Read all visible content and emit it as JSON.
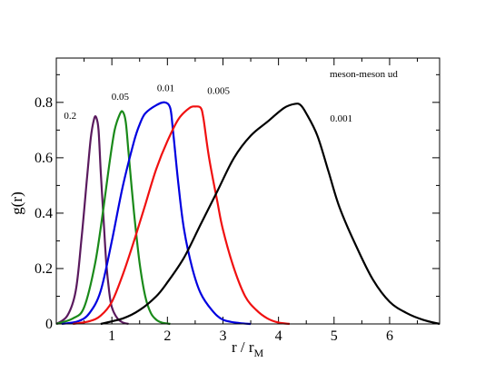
{
  "chart_data": {
    "type": "line",
    "annotation": "meson-meson ud",
    "xlabel": "r / r",
    "xlabel_sub": "M",
    "ylabel": "g(r)",
    "xlim": [
      0,
      6.9
    ],
    "ylim": [
      0,
      0.96
    ],
    "x_ticks": [
      1,
      2,
      3,
      4,
      5,
      6
    ],
    "x_tick_labels": [
      "1",
      "2",
      "3",
      "4",
      "5",
      "6"
    ],
    "y_ticks": [
      0,
      0.2,
      0.4,
      0.6,
      0.8
    ],
    "y_tick_labels": [
      "0",
      "0.2",
      "0.4",
      "0.6",
      "0.8"
    ],
    "grid": false,
    "legend": "none",
    "series": [
      {
        "name": "0.2",
        "color": "#5a1a5e",
        "label_pos": [
          0.25,
          0.74
        ],
        "x": [
          0.0,
          0.2,
          0.35,
          0.45,
          0.55,
          0.62,
          0.68,
          0.72,
          0.76,
          0.8,
          0.85,
          0.9,
          0.95,
          1.0,
          1.1,
          1.2,
          1.3
        ],
        "y": [
          0.0,
          0.03,
          0.12,
          0.3,
          0.52,
          0.67,
          0.74,
          0.745,
          0.7,
          0.55,
          0.38,
          0.22,
          0.12,
          0.06,
          0.02,
          0.005,
          0.0
        ]
      },
      {
        "name": "0.05",
        "color": "#1a8a1a",
        "label_pos": [
          1.15,
          0.81
        ],
        "x": [
          0.0,
          0.3,
          0.5,
          0.7,
          0.85,
          0.95,
          1.05,
          1.15,
          1.2,
          1.25,
          1.3,
          1.4,
          1.5,
          1.6,
          1.7,
          1.8,
          1.9,
          2.05
        ],
        "y": [
          0.0,
          0.02,
          0.06,
          0.22,
          0.42,
          0.57,
          0.7,
          0.76,
          0.765,
          0.73,
          0.62,
          0.4,
          0.22,
          0.1,
          0.04,
          0.015,
          0.005,
          0.0
        ]
      },
      {
        "name": "0.01",
        "color": "#0000e0",
        "label_pos": [
          1.97,
          0.84
        ],
        "x": [
          0.1,
          0.4,
          0.6,
          0.8,
          1.0,
          1.2,
          1.4,
          1.5,
          1.6,
          1.8,
          1.95,
          2.05,
          2.1,
          2.2,
          2.3,
          2.45,
          2.6,
          2.8,
          3.0,
          3.3,
          3.5
        ],
        "y": [
          0.0,
          0.01,
          0.04,
          0.12,
          0.3,
          0.5,
          0.66,
          0.72,
          0.76,
          0.79,
          0.8,
          0.78,
          0.7,
          0.5,
          0.34,
          0.2,
          0.11,
          0.05,
          0.015,
          0.003,
          0.0
        ]
      },
      {
        "name": "0.005",
        "color": "#f01010",
        "label_pos": [
          2.92,
          0.83
        ],
        "x": [
          0.3,
          0.6,
          0.8,
          1.0,
          1.2,
          1.4,
          1.6,
          1.8,
          2.0,
          2.2,
          2.4,
          2.5,
          2.6,
          2.65,
          2.75,
          2.9,
          3.0,
          3.2,
          3.4,
          3.6,
          3.8,
          4.0,
          4.2
        ],
        "y": [
          0.0,
          0.01,
          0.03,
          0.08,
          0.18,
          0.3,
          0.43,
          0.56,
          0.66,
          0.74,
          0.78,
          0.785,
          0.78,
          0.74,
          0.6,
          0.44,
          0.34,
          0.2,
          0.1,
          0.05,
          0.02,
          0.005,
          0.0
        ]
      },
      {
        "name": "0.001",
        "color": "#000000",
        "label_pos": [
          5.13,
          0.73
        ],
        "x": [
          0.8,
          1.2,
          1.5,
          1.8,
          2.0,
          2.3,
          2.6,
          2.9,
          3.2,
          3.5,
          3.8,
          4.1,
          4.3,
          4.4,
          4.5,
          4.7,
          4.9,
          5.1,
          5.4,
          5.7,
          6.0,
          6.3,
          6.6,
          6.9
        ],
        "y": [
          0.0,
          0.02,
          0.05,
          0.1,
          0.15,
          0.24,
          0.36,
          0.48,
          0.6,
          0.68,
          0.73,
          0.78,
          0.795,
          0.79,
          0.76,
          0.68,
          0.55,
          0.42,
          0.28,
          0.16,
          0.08,
          0.04,
          0.015,
          0.0
        ]
      }
    ]
  }
}
